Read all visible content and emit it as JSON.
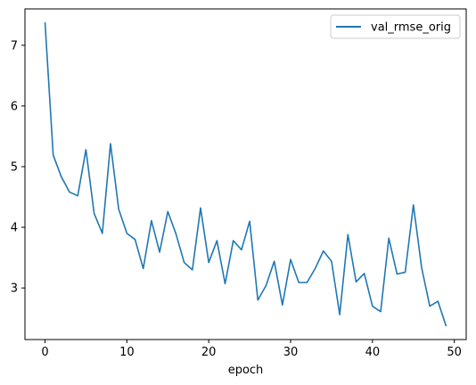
{
  "chart_data": {
    "type": "line",
    "title": "",
    "xlabel": "epoch",
    "ylabel": "",
    "xlim": [
      -2.45,
      51.45
    ],
    "ylim": [
      2.15,
      7.6
    ],
    "xticks": [
      0,
      10,
      20,
      30,
      40,
      50
    ],
    "yticks": [
      3,
      4,
      5,
      6,
      7
    ],
    "grid": false,
    "legend": {
      "placement": "top-right"
    },
    "series": [
      {
        "name": "val_rmse_orig",
        "color": "#1f77b4",
        "x": [
          0,
          1,
          2,
          3,
          4,
          5,
          6,
          7,
          8,
          9,
          10,
          11,
          12,
          13,
          14,
          15,
          16,
          17,
          18,
          19,
          20,
          21,
          22,
          23,
          24,
          25,
          26,
          27,
          28,
          29,
          30,
          31,
          32,
          33,
          34,
          35,
          36,
          37,
          38,
          39,
          40,
          41,
          42,
          43,
          44,
          45,
          46,
          47,
          48,
          49
        ],
        "values": [
          7.38,
          5.19,
          4.83,
          4.58,
          4.52,
          5.28,
          4.23,
          3.9,
          5.38,
          4.3,
          3.9,
          3.8,
          3.32,
          4.11,
          3.59,
          4.26,
          3.89,
          3.42,
          3.3,
          4.32,
          3.42,
          3.78,
          3.07,
          3.78,
          3.63,
          4.1,
          2.8,
          3.04,
          3.44,
          2.72,
          3.47,
          3.09,
          3.09,
          3.32,
          3.61,
          3.44,
          2.56,
          3.88,
          3.1,
          3.24,
          2.7,
          2.61,
          3.82,
          3.23,
          3.26,
          4.37,
          3.34,
          2.7,
          2.78,
          2.37
        ]
      }
    ]
  }
}
